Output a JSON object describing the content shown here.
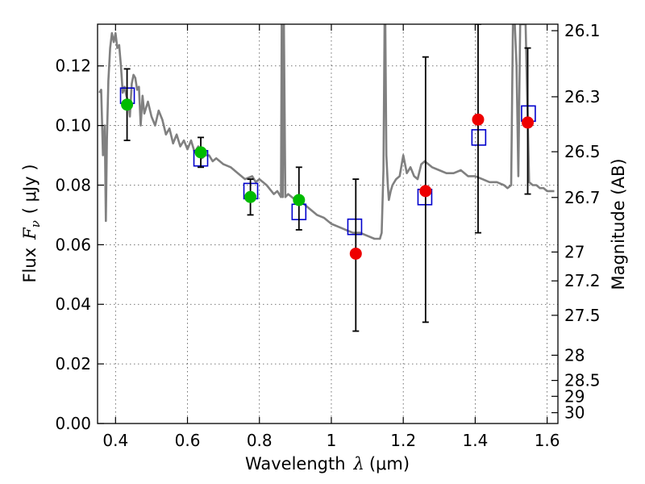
{
  "chart_data": {
    "type": "scatter",
    "xlabel": "Wavelength",
    "xlabel_symbol": "λ",
    "xlabel_unit": "(μm)",
    "ylabel": "Flux",
    "ylabel_symbol": "F",
    "ylabel_subscript": "ν",
    "ylabel_unit": "( μJy )",
    "y2label": "Magnitude (AB)",
    "xlim": [
      0.35,
      1.63
    ],
    "ylim": [
      0.0,
      0.134
    ],
    "xticks": [
      0.4,
      0.6,
      0.8,
      1.0,
      1.2,
      1.4,
      1.6
    ],
    "xtick_labels": [
      "0.4",
      "0.6",
      "0.8",
      "1",
      "1.2",
      "1.4",
      "1.6"
    ],
    "yticks": [
      0.0,
      0.02,
      0.04,
      0.06,
      0.08,
      0.1,
      0.12
    ],
    "ytick_labels": [
      "0.00",
      "0.02",
      "0.04",
      "0.06",
      "0.08",
      "0.10",
      "0.12"
    ],
    "y2ticks": [
      26.1,
      26.3,
      26.5,
      26.7,
      27,
      27.2,
      27.5,
      28,
      28.5,
      29,
      30
    ],
    "y2tick_labels": [
      "26.1",
      "26.3",
      "26.5",
      "26.7",
      "27",
      "27.2",
      "27.5",
      "28",
      "28.5",
      "29",
      "30"
    ],
    "grid": true,
    "colors": {
      "model": "#808080",
      "model_photometry": "#0000cc",
      "detection": "#00bb00",
      "upper": "#ee0000",
      "errorbar": "#000000"
    },
    "model_spectrum": {
      "x": [
        0.355,
        0.36,
        0.365,
        0.37,
        0.373,
        0.376,
        0.38,
        0.385,
        0.39,
        0.395,
        0.4,
        0.405,
        0.41,
        0.415,
        0.42,
        0.425,
        0.43,
        0.435,
        0.44,
        0.445,
        0.45,
        0.455,
        0.46,
        0.465,
        0.47,
        0.475,
        0.48,
        0.49,
        0.5,
        0.51,
        0.52,
        0.53,
        0.54,
        0.55,
        0.56,
        0.57,
        0.58,
        0.59,
        0.6,
        0.61,
        0.62,
        0.63,
        0.64,
        0.65,
        0.66,
        0.67,
        0.68,
        0.7,
        0.72,
        0.74,
        0.76,
        0.78,
        0.79,
        0.8,
        0.82,
        0.84,
        0.85,
        0.86,
        0.862,
        0.865,
        0.868,
        0.872,
        0.88,
        0.9,
        0.92,
        0.94,
        0.96,
        0.98,
        1.0,
        1.02,
        1.04,
        1.06,
        1.08,
        1.1,
        1.12,
        1.135,
        1.14,
        1.145,
        1.148,
        1.15,
        1.153,
        1.157,
        1.16,
        1.165,
        1.17,
        1.18,
        1.19,
        1.2,
        1.21,
        1.22,
        1.23,
        1.24,
        1.25,
        1.26,
        1.27,
        1.28,
        1.3,
        1.32,
        1.34,
        1.36,
        1.38,
        1.4,
        1.42,
        1.44,
        1.46,
        1.48,
        1.49,
        1.5,
        1.505,
        1.51,
        1.515,
        1.52,
        1.525,
        1.53,
        1.54,
        1.55,
        1.56,
        1.57,
        1.58,
        1.59,
        1.6,
        1.61,
        1.62
      ],
      "y": [
        0.111,
        0.112,
        0.09,
        0.1,
        0.068,
        0.095,
        0.115,
        0.126,
        0.131,
        0.128,
        0.131,
        0.126,
        0.127,
        0.12,
        0.111,
        0.113,
        0.11,
        0.108,
        0.103,
        0.114,
        0.117,
        0.116,
        0.112,
        0.113,
        0.1,
        0.11,
        0.104,
        0.108,
        0.103,
        0.1,
        0.105,
        0.102,
        0.097,
        0.099,
        0.094,
        0.097,
        0.093,
        0.095,
        0.092,
        0.095,
        0.091,
        0.093,
        0.089,
        0.09,
        0.09,
        0.088,
        0.089,
        0.087,
        0.086,
        0.084,
        0.082,
        0.083,
        0.081,
        0.082,
        0.08,
        0.077,
        0.078,
        0.076,
        0.134,
        0.076,
        0.134,
        0.076,
        0.077,
        0.075,
        0.074,
        0.072,
        0.07,
        0.069,
        0.067,
        0.066,
        0.065,
        0.064,
        0.064,
        0.063,
        0.062,
        0.062,
        0.064,
        0.085,
        0.134,
        0.134,
        0.09,
        0.08,
        0.075,
        0.078,
        0.08,
        0.082,
        0.083,
        0.09,
        0.084,
        0.086,
        0.083,
        0.082,
        0.087,
        0.088,
        0.087,
        0.086,
        0.085,
        0.084,
        0.084,
        0.085,
        0.083,
        0.083,
        0.082,
        0.081,
        0.081,
        0.08,
        0.079,
        0.08,
        0.134,
        0.134,
        0.12,
        0.083,
        0.134,
        0.134,
        0.134,
        0.081,
        0.08,
        0.08,
        0.079,
        0.079,
        0.078,
        0.078,
        0.078
      ]
    },
    "model_photometry": {
      "x": [
        0.433,
        0.637,
        0.776,
        0.91,
        1.065,
        1.26,
        1.41,
        1.548
      ],
      "y": [
        0.11,
        0.089,
        0.078,
        0.071,
        0.066,
        0.076,
        0.096,
        0.104
      ]
    },
    "detections": {
      "x": [
        0.432,
        0.637,
        0.775,
        0.91
      ],
      "y": [
        0.107,
        0.091,
        0.076,
        0.075
      ],
      "err_low": [
        0.095,
        0.086,
        0.07,
        0.065
      ],
      "err_high": [
        0.119,
        0.096,
        0.082,
        0.086
      ]
    },
    "upper_limits": {
      "x": [
        1.068,
        1.262,
        1.408,
        1.546
      ],
      "y": [
        0.057,
        0.078,
        0.102,
        0.101
      ],
      "err_low": [
        0.031,
        0.034,
        0.064,
        0.077
      ],
      "err_high": [
        0.082,
        0.123,
        0.134,
        0.126
      ]
    }
  }
}
